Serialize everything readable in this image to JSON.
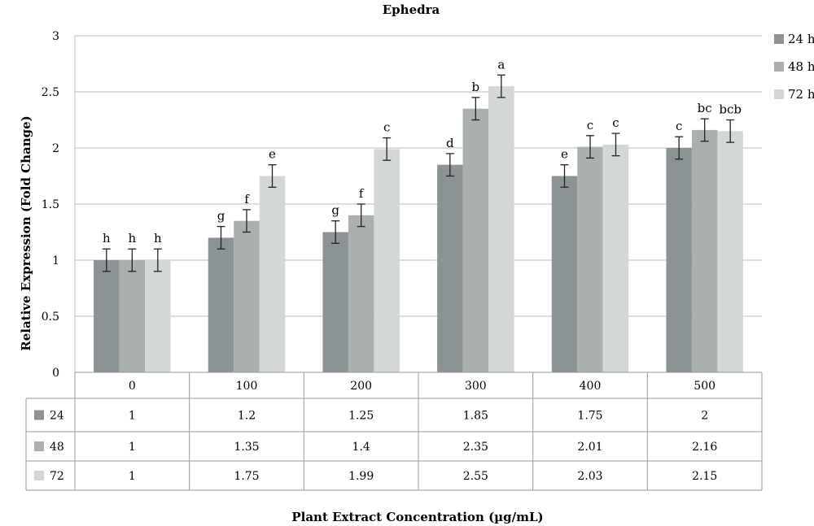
{
  "chart_data": {
    "type": "bar",
    "title": "Ephedra",
    "xlabel": "Plant Extract Concentration (µg/mL)",
    "ylabel": "Relative Expression (Fold Change)",
    "ylim": [
      0,
      3
    ],
    "yticks": [
      0,
      0.5,
      1,
      1.5,
      2,
      2.5,
      3
    ],
    "ytick_labels": [
      "0",
      "0.5",
      "1",
      "1.5",
      "2",
      "2.5",
      "3"
    ],
    "grid": true,
    "legend_position": "right",
    "categories": [
      "0",
      "100",
      "200",
      "300",
      "400",
      "500"
    ],
    "error": 0.1,
    "series": [
      {
        "name": "24 h",
        "table_label": "24",
        "color": "#8c9394",
        "values": [
          1,
          1.2,
          1.25,
          1.85,
          1.75,
          2
        ],
        "value_labels": [
          "1",
          "1.2",
          "1.25",
          "1.85",
          "1.75",
          "2"
        ],
        "letters": [
          "h",
          "g",
          "g",
          "d",
          "e",
          "c"
        ]
      },
      {
        "name": "48 h",
        "table_label": "48",
        "color": "#a9b0ae",
        "values": [
          1,
          1.35,
          1.4,
          2.35,
          2.01,
          2.16
        ],
        "value_labels": [
          "1",
          "1.35",
          "1.4",
          "2.35",
          "2.01",
          "2.16"
        ],
        "letters": [
          "h",
          "f",
          "f",
          "b",
          "c",
          "bc"
        ]
      },
      {
        "name": "72 h",
        "table_label": "72",
        "color": "#d3d8d6",
        "values": [
          1,
          1.75,
          1.99,
          2.55,
          2.03,
          2.15
        ],
        "value_labels": [
          "1",
          "1.75",
          "1.99",
          "2.55",
          "2.03",
          "2.15"
        ],
        "letters": [
          "h",
          "e",
          "c",
          "a",
          "c",
          "bcb"
        ]
      }
    ]
  }
}
